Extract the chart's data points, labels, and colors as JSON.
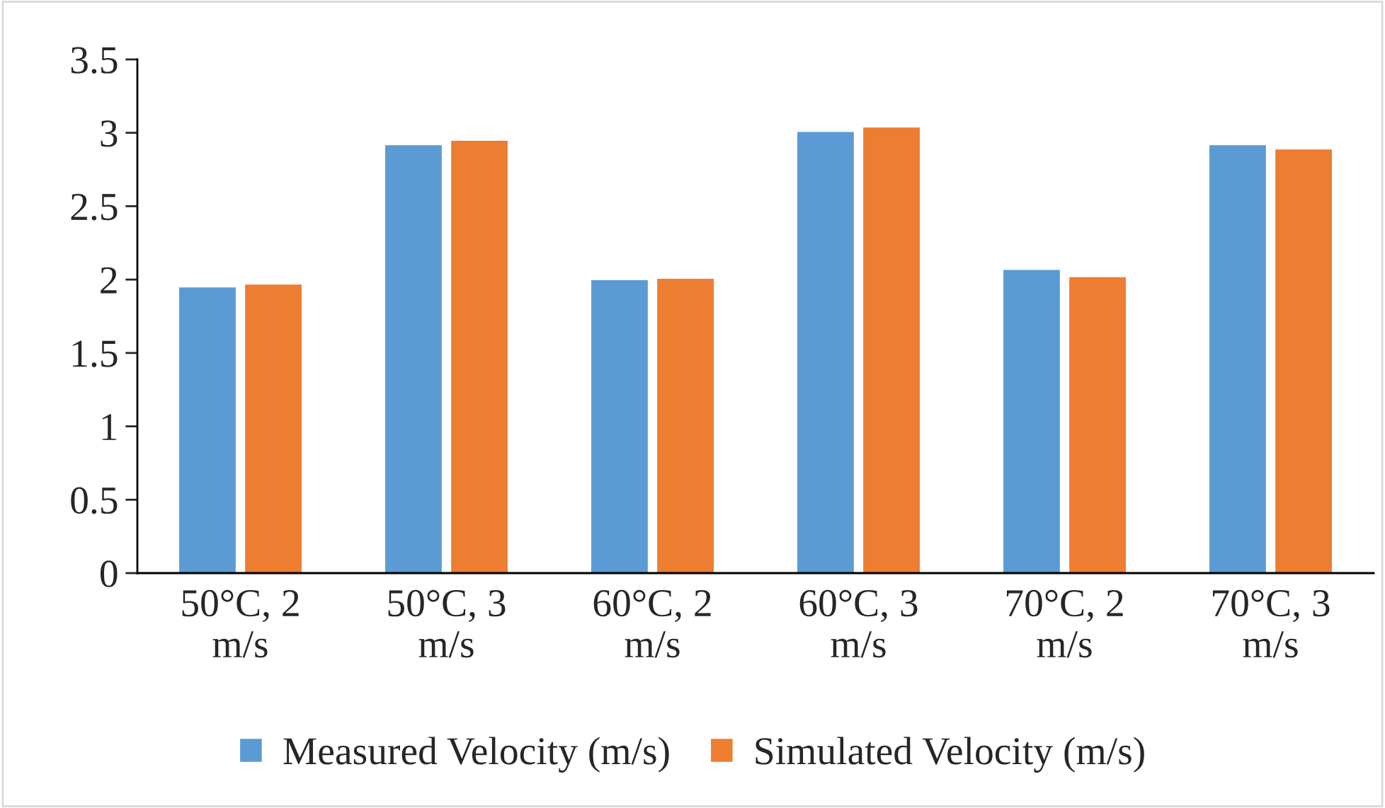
{
  "chart_data": {
    "type": "bar",
    "categories": [
      "50°C, 2 m/s",
      "50°C, 3 m/s",
      "60°C, 2 m/s",
      "60°C, 3 m/s",
      "70°C, 2 m/s",
      "70°C, 3 m/s"
    ],
    "series": [
      {
        "name": "Measured Velocity (m/s)",
        "color": "#5b9bd5",
        "values": [
          1.95,
          2.92,
          2.0,
          3.01,
          2.07,
          2.92
        ]
      },
      {
        "name": "Simulated Velocity (m/s)",
        "color": "#ed7d31",
        "values": [
          1.97,
          2.95,
          2.01,
          3.04,
          2.02,
          2.89
        ]
      }
    ],
    "ylim": [
      0,
      3.5
    ],
    "yticks": [
      0,
      0.5,
      1,
      1.5,
      2,
      2.5,
      3,
      3.5
    ],
    "grid": false,
    "legend": "bottom"
  }
}
